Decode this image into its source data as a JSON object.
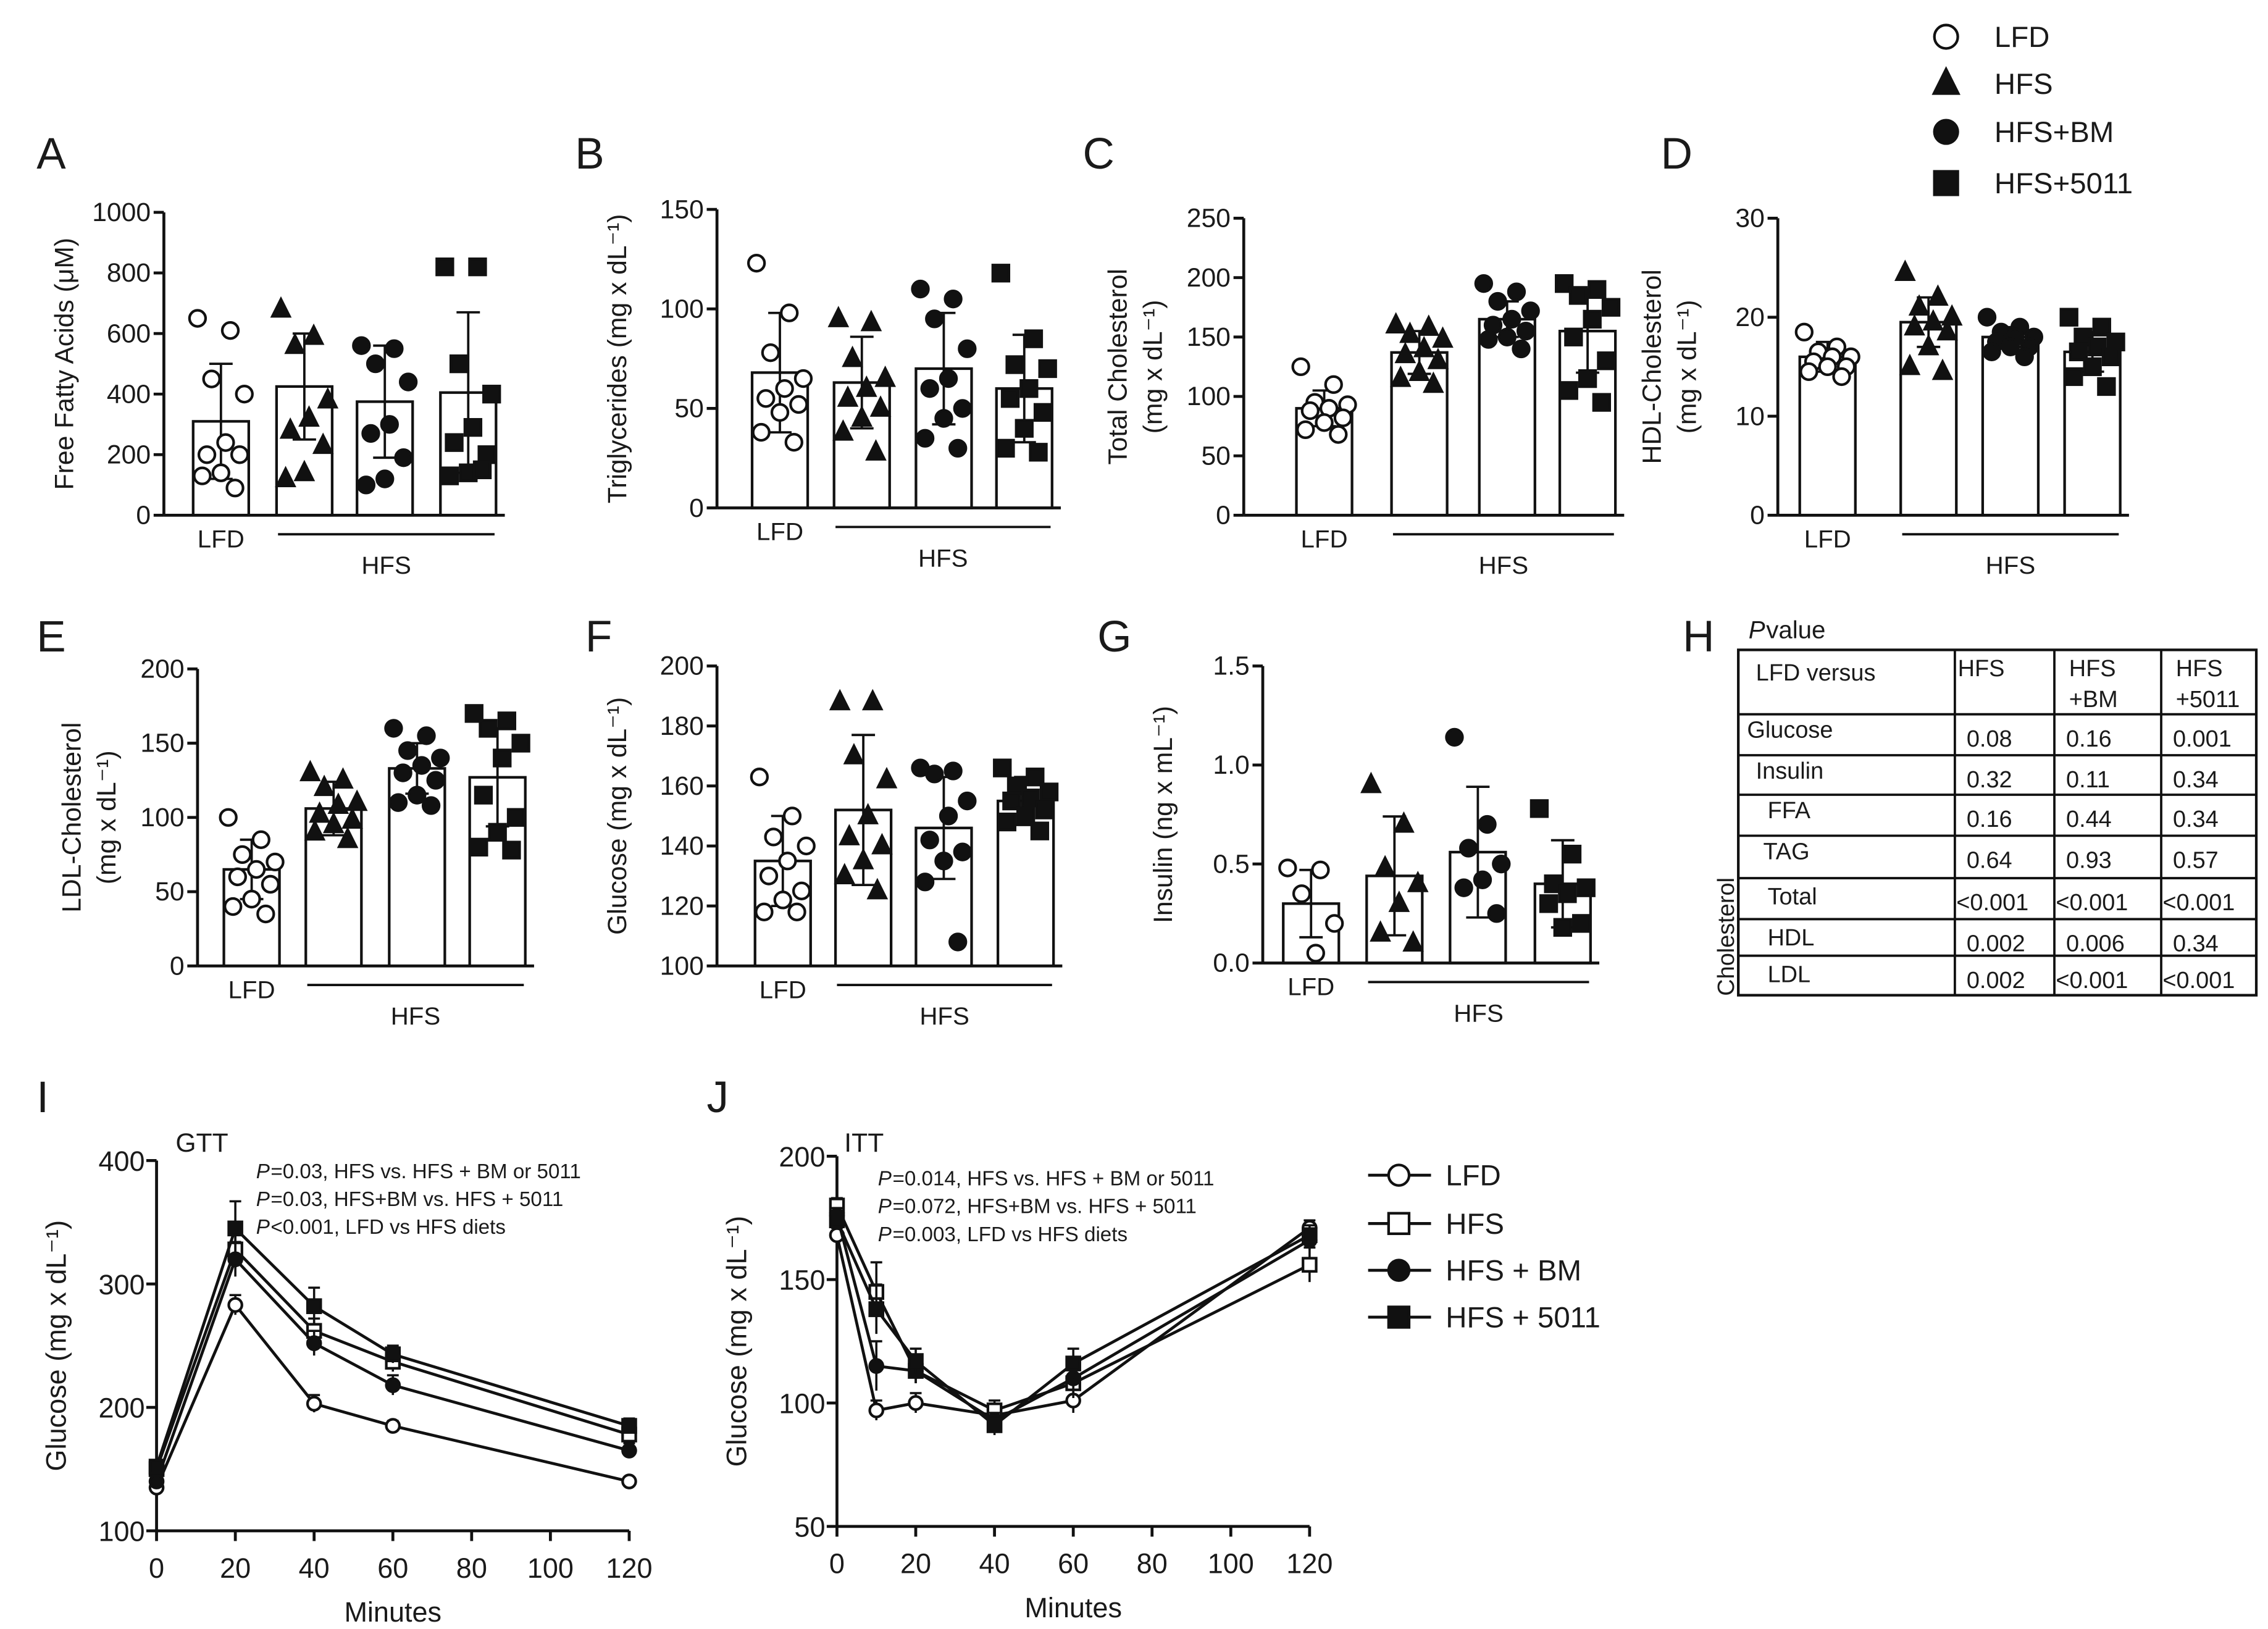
{
  "groups": [
    "LFD",
    "HFS",
    "HFS+BM",
    "HFS+5011"
  ],
  "legend_top": {
    "items": [
      "LFD",
      "HFS",
      "HFS+BM",
      "HFS+5011"
    ],
    "markers": [
      "open-circle",
      "filled-triangle",
      "filled-circle",
      "filled-square"
    ]
  },
  "x_group_labels": {
    "lfd": "LFD",
    "hfs": "HFS"
  },
  "chart_data": [
    {
      "id": "A",
      "type": "bar",
      "panel_label": "A",
      "ylabel": [
        "Free Fatty Acids (μM)"
      ],
      "ylim": [
        0,
        1000
      ],
      "ticks": [
        0,
        200,
        400,
        600,
        800,
        1000
      ],
      "means": [
        310,
        425,
        375,
        405
      ],
      "sd": [
        190,
        175,
        185,
        265
      ],
      "points": [
        [
          650,
          610,
          450,
          400,
          240,
          200,
          200,
          140,
          130,
          90
        ],
        [
          680,
          590,
          560,
          380,
          320,
          280,
          230,
          140,
          120
        ],
        [
          560,
          550,
          500,
          440,
          300,
          270,
          190,
          120,
          100
        ],
        [
          820,
          820,
          500,
          400,
          290,
          240,
          200,
          140,
          130,
          150
        ]
      ]
    },
    {
      "id": "B",
      "type": "bar",
      "panel_label": "B",
      "ylabel": [
        "Triglycerides (mg x dL⁻¹)"
      ],
      "ylim": [
        0,
        150
      ],
      "ticks": [
        0,
        50,
        100,
        150
      ],
      "means": [
        68,
        63,
        70,
        60
      ],
      "sd": [
        30,
        23,
        28,
        27
      ],
      "points": [
        [
          123,
          98,
          78,
          65,
          60,
          55,
          52,
          48,
          38,
          33
        ],
        [
          95,
          93,
          75,
          65,
          60,
          55,
          50,
          45,
          38,
          28
        ],
        [
          110,
          105,
          95,
          80,
          65,
          60,
          50,
          45,
          35,
          30
        ],
        [
          118,
          85,
          72,
          70,
          60,
          55,
          48,
          40,
          30,
          28
        ]
      ]
    },
    {
      "id": "C",
      "type": "bar",
      "panel_label": "C",
      "ylabel": [
        "Total Cholesterol",
        "(mg x dL⁻¹)"
      ],
      "ylim": [
        0,
        250
      ],
      "ticks": [
        0,
        50,
        100,
        150,
        200,
        250
      ],
      "means": [
        90,
        137,
        165,
        155
      ],
      "sd": [
        15,
        18,
        15,
        35
      ],
      "points": [
        [
          125,
          110,
          95,
          93,
          90,
          88,
          82,
          78,
          72,
          68
        ],
        [
          160,
          158,
          152,
          148,
          140,
          135,
          130,
          120,
          115,
          110
        ],
        [
          195,
          188,
          180,
          172,
          165,
          160,
          155,
          150,
          148,
          140
        ],
        [
          195,
          190,
          185,
          175,
          165,
          150,
          130,
          115,
          105,
          95
        ]
      ]
    },
    {
      "id": "D",
      "type": "bar",
      "panel_label": "D",
      "ylabel": [
        "HDL-Cholesterol",
        "(mg x dL⁻¹)"
      ],
      "ylim": [
        0,
        30
      ],
      "ticks": [
        0,
        10,
        20,
        30
      ],
      "means": [
        16,
        19.5,
        18,
        16.5
      ],
      "sd": [
        1.5,
        2.5,
        1,
        2
      ],
      "points": [
        [
          18.5,
          17,
          16.5,
          16,
          16,
          15.5,
          15,
          15,
          14.5,
          14
        ],
        [
          24.5,
          22,
          21,
          20,
          19.5,
          19,
          18.5,
          17,
          15,
          14.5
        ],
        [
          20,
          19,
          18.5,
          18,
          18,
          17.5,
          17,
          17,
          16.5,
          16
        ],
        [
          20,
          19,
          18,
          17.5,
          17,
          16.5,
          16,
          15,
          14,
          13
        ]
      ]
    },
    {
      "id": "E",
      "type": "bar",
      "panel_label": "E",
      "ylabel": [
        "LDL-Cholesterol",
        "(mg x dL⁻¹)"
      ],
      "ylim": [
        0,
        200
      ],
      "ticks": [
        0,
        50,
        100,
        150,
        200
      ],
      "means": [
        65,
        106,
        133,
        127
      ],
      "sd": [
        20,
        18,
        17,
        33
      ],
      "points": [
        [
          100,
          85,
          75,
          70,
          65,
          60,
          55,
          45,
          40,
          35
        ],
        [
          130,
          125,
          120,
          110,
          108,
          102,
          98,
          95,
          90,
          85
        ],
        [
          160,
          155,
          145,
          140,
          135,
          130,
          125,
          115,
          110,
          108
        ],
        [
          170,
          165,
          160,
          150,
          140,
          115,
          100,
          90,
          80,
          78
        ]
      ]
    },
    {
      "id": "F",
      "type": "bar",
      "panel_label": "F",
      "ylabel": [
        "Glucose (mg x dL⁻¹)"
      ],
      "ylim": [
        100,
        200
      ],
      "ticks": [
        100,
        120,
        140,
        160,
        180,
        200
      ],
      "means": [
        135,
        152,
        146,
        155
      ],
      "sd": [
        15,
        25,
        17,
        8
      ],
      "points": [
        [
          163,
          150,
          143,
          140,
          135,
          130,
          125,
          122,
          118,
          118
        ],
        [
          188,
          188,
          170,
          162,
          150,
          143,
          140,
          135,
          130,
          125
        ],
        [
          166,
          165,
          164,
          155,
          150,
          142,
          138,
          135,
          128,
          108
        ],
        [
          166,
          163,
          160,
          158,
          156,
          155,
          152,
          150,
          148,
          145
        ]
      ]
    },
    {
      "id": "G",
      "type": "bar",
      "panel_label": "G",
      "ylabel": [
        "Insulin (ng x mL⁻¹)"
      ],
      "ylim": [
        0,
        1.5
      ],
      "ticks": [
        "0.0",
        "0.5",
        "1.0",
        "1.5"
      ],
      "means": [
        0.3,
        0.44,
        0.56,
        0.4
      ],
      "sd": [
        0.17,
        0.3,
        0.33,
        0.22
      ],
      "points": [
        [
          0.48,
          0.47,
          0.35,
          0.2,
          0.05
        ],
        [
          0.9,
          0.7,
          0.48,
          0.4,
          0.3,
          0.15,
          0.1
        ],
        [
          1.14,
          0.7,
          0.58,
          0.5,
          0.42,
          0.38,
          0.25
        ],
        [
          0.78,
          0.55,
          0.4,
          0.38,
          0.35,
          0.3,
          0.2,
          0.18
        ]
      ]
    },
    {
      "id": "I",
      "type": "line",
      "panel_label": "I",
      "title": "GTT",
      "xlabel": "Minutes",
      "ylabel": "Glucose (mg x dL⁻¹)",
      "xlim": [
        0,
        120
      ],
      "ylim": [
        100,
        400
      ],
      "xticks": [
        0,
        20,
        40,
        60,
        80,
        100,
        120
      ],
      "yticks": [
        100,
        200,
        300,
        400
      ],
      "annotations": [
        {
          "p": "P",
          "text": "=0.03, HFS vs. HFS + BM or 5011"
        },
        {
          "p": "P",
          "text": "=0.03, HFS+BM vs. HFS + 5011"
        },
        {
          "p": "P",
          "text": "<0.001, LFD vs HFS diets"
        }
      ],
      "x": [
        0,
        20,
        40,
        60,
        120
      ],
      "series": [
        {
          "name": "LFD",
          "marker": "open-circle",
          "values": [
            135,
            283,
            203,
            185,
            140
          ],
          "err": [
            4,
            8,
            7,
            4,
            3
          ]
        },
        {
          "name": "HFS",
          "marker": "open-square",
          "values": [
            150,
            328,
            262,
            237,
            178
          ],
          "err": [
            5,
            15,
            10,
            8,
            6
          ]
        },
        {
          "name": "HFS + BM",
          "marker": "filled-circle",
          "values": [
            140,
            320,
            252,
            218,
            165
          ],
          "err": [
            5,
            14,
            10,
            8,
            6
          ]
        },
        {
          "name": "HFS + 5011",
          "marker": "filled-square",
          "values": [
            152,
            345,
            282,
            243,
            185
          ],
          "err": [
            5,
            22,
            15,
            7,
            6
          ]
        }
      ]
    },
    {
      "id": "J",
      "type": "line",
      "panel_label": "J",
      "title": "ITT",
      "xlabel": "Minutes",
      "ylabel": "Glucose (mg x dL⁻¹)",
      "xlim": [
        0,
        120
      ],
      "ylim": [
        50,
        200
      ],
      "xticks": [
        0,
        20,
        40,
        60,
        80,
        100,
        120
      ],
      "yticks": [
        50,
        100,
        150,
        200
      ],
      "annotations": [
        {
          "p": "P",
          "text": "=0.014, HFS vs. HFS + BM or 5011"
        },
        {
          "p": "P",
          "text": "=0.072, HFS+BM vs. HFS + 5011"
        },
        {
          "p": "P",
          "text": "=0.003, LFD vs HFS diets"
        }
      ],
      "x": [
        0,
        10,
        20,
        40,
        60,
        120
      ],
      "series": [
        {
          "name": "LFD",
          "marker": "open-circle",
          "values": [
            168,
            97,
            100,
            95,
            101,
            171
          ],
          "err": [
            3,
            4,
            4,
            3,
            5,
            3
          ]
        },
        {
          "name": "HFS",
          "marker": "open-square",
          "values": [
            180,
            145,
            113,
            97,
            108,
            156
          ],
          "err": [
            3,
            12,
            5,
            4,
            6,
            7
          ]
        },
        {
          "name": "HFS + BM",
          "marker": "filled-circle",
          "values": [
            176,
            115,
            113,
            93,
            110,
            166
          ],
          "err": [
            3,
            10,
            5,
            3,
            5,
            4
          ]
        },
        {
          "name": "HFS + 5011",
          "marker": "filled-square",
          "values": [
            174,
            138,
            117,
            91,
            116,
            168
          ],
          "err": [
            3,
            10,
            5,
            4,
            6,
            4
          ]
        }
      ]
    }
  ],
  "table_h": {
    "panel_label": "H",
    "title_italic": "P",
    "title_rest": " value",
    "side_label": "Cholesterol",
    "header": [
      "LFD versus",
      [
        "HFS"
      ],
      [
        "HFS",
        "+BM"
      ],
      [
        "HFS",
        "+5011"
      ]
    ],
    "rows": [
      [
        "Glucose",
        "0.08",
        "0.16",
        "0.001"
      ],
      [
        "Insulin",
        "0.32",
        "0.11",
        "0.34"
      ],
      [
        "FFA",
        "0.16",
        "0.44",
        "0.34"
      ],
      [
        "TAG",
        "0.64",
        "0.93",
        "0.57"
      ],
      [
        "Total",
        "<0.001",
        "<0.001",
        "<0.001"
      ],
      [
        "HDL",
        "0.002",
        "0.006",
        "0.34"
      ],
      [
        "LDL",
        "0.002",
        "<0.001",
        "<0.001"
      ]
    ]
  }
}
